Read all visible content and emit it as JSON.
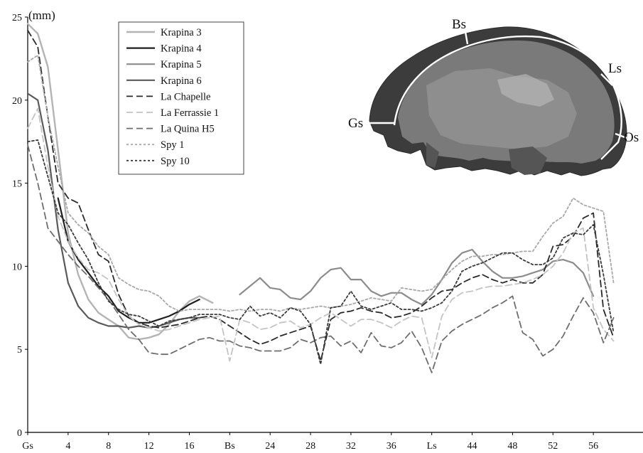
{
  "chart_data": {
    "type": "line",
    "ylabel": "(mm)",
    "ylim": [
      0,
      25
    ],
    "yticks": [
      "0",
      "5",
      "10",
      "15",
      "20",
      "25"
    ],
    "xlim": [
      0,
      60
    ],
    "xticks": [
      {
        "x": 0,
        "label": "Gs"
      },
      {
        "x": 4,
        "label": "4"
      },
      {
        "x": 8,
        "label": "8"
      },
      {
        "x": 12,
        "label": "12"
      },
      {
        "x": 16,
        "label": "16"
      },
      {
        "x": 20,
        "label": "Bs"
      },
      {
        "x": 24,
        "label": "24"
      },
      {
        "x": 28,
        "label": "28"
      },
      {
        "x": 32,
        "label": "32"
      },
      {
        "x": 36,
        "label": "36"
      },
      {
        "x": 40,
        "label": "Ls"
      },
      {
        "x": 44,
        "label": "44"
      },
      {
        "x": 48,
        "label": "48"
      },
      {
        "x": 52,
        "label": "52"
      },
      {
        "x": 56,
        "label": "56"
      }
    ],
    "grid": false,
    "legend_position": "top-left",
    "series": [
      {
        "name": "Krapina 3",
        "color": "#b4b4b4",
        "dash": "solid",
        "width": 2.4,
        "x": [
          0,
          1,
          2,
          3,
          4,
          5,
          6,
          7,
          8,
          9,
          10,
          11,
          12,
          13,
          14,
          15,
          16,
          17,
          18.3
        ],
        "y": [
          24.6,
          24,
          22,
          17,
          12,
          9.5,
          8,
          7.2,
          6.8,
          6.4,
          5.7,
          5.6,
          5.7,
          5.9,
          6.5,
          7.3,
          7.9,
          8.2,
          7.8
        ]
      },
      {
        "name": "Krapina 4",
        "color": "#1f1f1f",
        "dash": "solid",
        "width": 2.2,
        "x": [
          3,
          4,
          5,
          6,
          7,
          8,
          9,
          10,
          11,
          12,
          13,
          14,
          15,
          16,
          17
        ],
        "y": [
          14.1,
          11.5,
          10.4,
          9.6,
          8.8,
          8.2,
          7.3,
          6.9,
          6.6,
          6.6,
          6.8,
          7,
          7.3,
          7.7,
          8
        ]
      },
      {
        "name": "Krapina 5",
        "color": "#8c8c8c",
        "dash": "solid",
        "width": 2.2,
        "x": [
          21,
          22,
          23,
          24,
          25,
          26,
          27,
          28,
          29,
          30,
          31,
          32,
          33,
          34,
          35,
          36,
          37,
          38,
          39,
          40,
          41,
          42,
          43,
          44,
          45,
          46,
          47,
          48,
          49,
          50,
          51,
          52,
          53,
          54,
          55,
          56
        ],
        "y": [
          8.3,
          8.8,
          9.3,
          8.7,
          8.6,
          8.1,
          8,
          8.5,
          9.3,
          9.8,
          9.9,
          9.2,
          9.2,
          8.5,
          8.2,
          8.4,
          8.4,
          8,
          7.7,
          8.3,
          9.2,
          10.2,
          10.8,
          11,
          10.3,
          9.7,
          9.3,
          9.3,
          9.4,
          9.6,
          9.8,
          10.3,
          10.4,
          10.2,
          9.6,
          8.2
        ]
      },
      {
        "name": "Krapina 6",
        "color": "#5a5a5a",
        "dash": "solid",
        "width": 2.2,
        "x": [
          0,
          1,
          2,
          3,
          4,
          5,
          6,
          7,
          8,
          9,
          10,
          11,
          12,
          13,
          14,
          15,
          16,
          17
        ],
        "y": [
          20.4,
          20,
          17,
          12.2,
          9,
          7.6,
          6.9,
          6.6,
          6.4,
          6.4,
          6.3,
          6.4,
          6.3,
          6.4,
          6.6,
          6.8,
          6.9,
          6.9
        ]
      },
      {
        "name": "La Chapelle",
        "color": "#2a2a2a",
        "dash": "9,5",
        "width": 1.8,
        "x": [
          0,
          1,
          2,
          3,
          4,
          5,
          6,
          7,
          8,
          9,
          10,
          11,
          12,
          13,
          14,
          15,
          16,
          17,
          18,
          19,
          20,
          21,
          22,
          23,
          24,
          25,
          26,
          27,
          28,
          29,
          30,
          31,
          32,
          33,
          34,
          35,
          36,
          37,
          38,
          39,
          40,
          41,
          42,
          43,
          44,
          45,
          46,
          47,
          48,
          49,
          50,
          51,
          52,
          53,
          54,
          55,
          56,
          57,
          58
        ],
        "y": [
          24.2,
          23.2,
          19,
          15,
          14.1,
          13.8,
          12.2,
          10.7,
          10.3,
          8.3,
          7,
          6.6,
          6.4,
          6.3,
          6.4,
          6.5,
          6.7,
          6.9,
          7,
          6.8,
          6.4,
          6,
          5.6,
          5.3,
          5.5,
          5.8,
          6,
          6.2,
          6.4,
          4.3,
          6.8,
          7.2,
          7.3,
          7.5,
          7.3,
          7.2,
          6.9,
          7,
          7.2,
          7.6,
          8.1,
          8.5,
          8.6,
          9,
          9.3,
          9.5,
          9.2,
          9,
          9.2,
          9,
          9,
          9.5,
          11.2,
          11.3,
          11.8,
          12.9,
          13.2,
          7.4,
          5.7
        ]
      },
      {
        "name": "La Ferrassie 1",
        "color": "#c4c4c4",
        "dash": "9,5",
        "width": 1.8,
        "x": [
          0,
          1,
          2,
          3,
          4,
          5,
          6,
          7,
          8,
          9,
          10,
          11,
          12,
          13,
          14,
          15,
          16,
          17,
          18,
          19,
          20,
          21,
          22,
          23,
          24,
          25,
          26,
          27,
          28,
          29,
          30,
          31,
          32,
          33,
          34,
          35,
          36,
          37,
          38,
          39,
          40,
          41,
          42,
          43,
          44,
          45,
          46,
          47,
          48,
          49,
          50,
          51,
          52,
          53,
          54,
          55,
          56,
          57,
          58
        ],
        "y": [
          18.3,
          19.5,
          16,
          13,
          11.5,
          10.5,
          9.8,
          9.6,
          9.2,
          8,
          7,
          6.5,
          6.3,
          6.1,
          6.2,
          6.4,
          6.6,
          6.8,
          6.9,
          7,
          4.3,
          6.8,
          6.6,
          6.2,
          6.3,
          6.6,
          6.7,
          6.3,
          6.5,
          6.9,
          7.2,
          6.8,
          6.4,
          6.8,
          6.8,
          6.6,
          6.3,
          6.7,
          7,
          6.9,
          4.5,
          7,
          8,
          8.4,
          8.5,
          8.7,
          8.8,
          8.8,
          8.9,
          9,
          9.2,
          9.5,
          10,
          10.8,
          12,
          12.3,
          7.5,
          6.2,
          5.5
        ]
      },
      {
        "name": "La Quina H5",
        "color": "#6e6e6e",
        "dash": "9,5",
        "width": 1.8,
        "x": [
          0,
          1,
          2,
          3,
          4,
          5,
          6,
          7,
          8,
          9,
          10,
          11,
          12,
          13,
          14,
          15,
          16,
          17,
          18,
          19,
          20,
          21,
          22,
          23,
          24,
          25,
          26,
          27,
          28,
          29,
          30,
          31,
          32,
          33,
          34,
          35,
          36,
          37,
          38,
          39,
          40,
          41,
          42,
          43,
          44,
          45,
          46,
          47,
          48,
          49,
          50,
          51,
          52,
          53,
          54,
          55,
          56,
          57,
          58
        ],
        "y": [
          17.3,
          15,
          12.3,
          11.5,
          10.7,
          10,
          9.4,
          8.7,
          8,
          7.1,
          6.2,
          5.6,
          4.8,
          4.7,
          4.7,
          5,
          5.3,
          5.6,
          5.7,
          5.5,
          5.5,
          5.2,
          5.1,
          4.9,
          4.9,
          4.9,
          5.1,
          5.6,
          5.4,
          5.7,
          5.8,
          5.2,
          5.5,
          4.8,
          6,
          5.2,
          5.1,
          5.4,
          6.1,
          5.1,
          3.6,
          5.5,
          6.1,
          6.5,
          6.8,
          7.1,
          7.5,
          7.8,
          8.2,
          6,
          5.6,
          4.6,
          5,
          5.8,
          7,
          8.1,
          7.2,
          5.4,
          6.9
        ]
      },
      {
        "name": "Spy 1",
        "color": "#a8a8a8",
        "dash": "3,3",
        "width": 1.8,
        "x": [
          0,
          1,
          2,
          3,
          4,
          5,
          6,
          7,
          8,
          9,
          10,
          11,
          12,
          13,
          14,
          15,
          16,
          17,
          18,
          19,
          20,
          21,
          22,
          23,
          24,
          25,
          26,
          27,
          28,
          29,
          30,
          31,
          32,
          33,
          34,
          35,
          36,
          37,
          38,
          39,
          40,
          41,
          42,
          43,
          44,
          45,
          46,
          47,
          48,
          49,
          50,
          51,
          52,
          53,
          54,
          55,
          56,
          57,
          58
        ],
        "y": [
          22.3,
          22.7,
          19,
          16,
          13.2,
          12.5,
          12,
          11.2,
          10.7,
          9.3,
          8.9,
          8.6,
          8.5,
          8.2,
          7.6,
          7.3,
          7.4,
          7.4,
          7.4,
          7.4,
          7.3,
          7.4,
          7.3,
          7.4,
          7.4,
          7.3,
          7.5,
          7.4,
          7.5,
          7.6,
          7.5,
          7.6,
          7.7,
          7.9,
          8.1,
          8,
          7.9,
          8.7,
          8.6,
          8.5,
          8.6,
          9.2,
          9.8,
          10.3,
          10.6,
          10.6,
          10.7,
          10.7,
          10.8,
          10.9,
          10.9,
          11.8,
          12.6,
          13,
          14.1,
          13.7,
          13.5,
          13.3,
          9
        ]
      },
      {
        "name": "Spy 10",
        "color": "#3a3a3a",
        "dash": "3,3",
        "width": 1.8,
        "x": [
          0,
          1,
          2,
          3,
          4,
          5,
          6,
          7,
          8,
          9,
          10,
          11,
          12,
          13,
          14,
          15,
          16,
          17,
          18,
          19,
          20,
          21,
          22,
          23,
          24,
          25,
          26,
          27,
          28,
          29,
          30,
          31,
          32,
          33,
          34,
          35,
          36,
          37,
          38,
          39,
          40,
          41,
          42,
          43,
          44,
          45,
          46,
          47,
          48,
          49,
          50,
          51,
          52,
          53,
          54,
          55,
          56,
          57,
          58
        ],
        "y": [
          17.5,
          17.6,
          15.4,
          13.2,
          12.5,
          11.4,
          10.4,
          9,
          7.9,
          7.4,
          7.1,
          7,
          6.7,
          6.4,
          6.7,
          6.8,
          6.9,
          7.1,
          7.1,
          7.1,
          6.9,
          6.8,
          7.6,
          7,
          7.2,
          6.9,
          7.5,
          7.3,
          6.5,
          4.1,
          7.5,
          7.6,
          8.5,
          7.6,
          7.4,
          7.6,
          7.8,
          7.4,
          7.4,
          7.3,
          7.5,
          7.8,
          8.5,
          9.7,
          10,
          10.2,
          10.5,
          10.8,
          10.8,
          10.4,
          10.1,
          10.1,
          10.5,
          11.7,
          12,
          11.9,
          12.5,
          9.5,
          6
        ]
      }
    ]
  },
  "inset": {
    "labels": {
      "bs": "Bs",
      "ls": "Ls",
      "gs": "Gs",
      "os": "Os"
    }
  }
}
